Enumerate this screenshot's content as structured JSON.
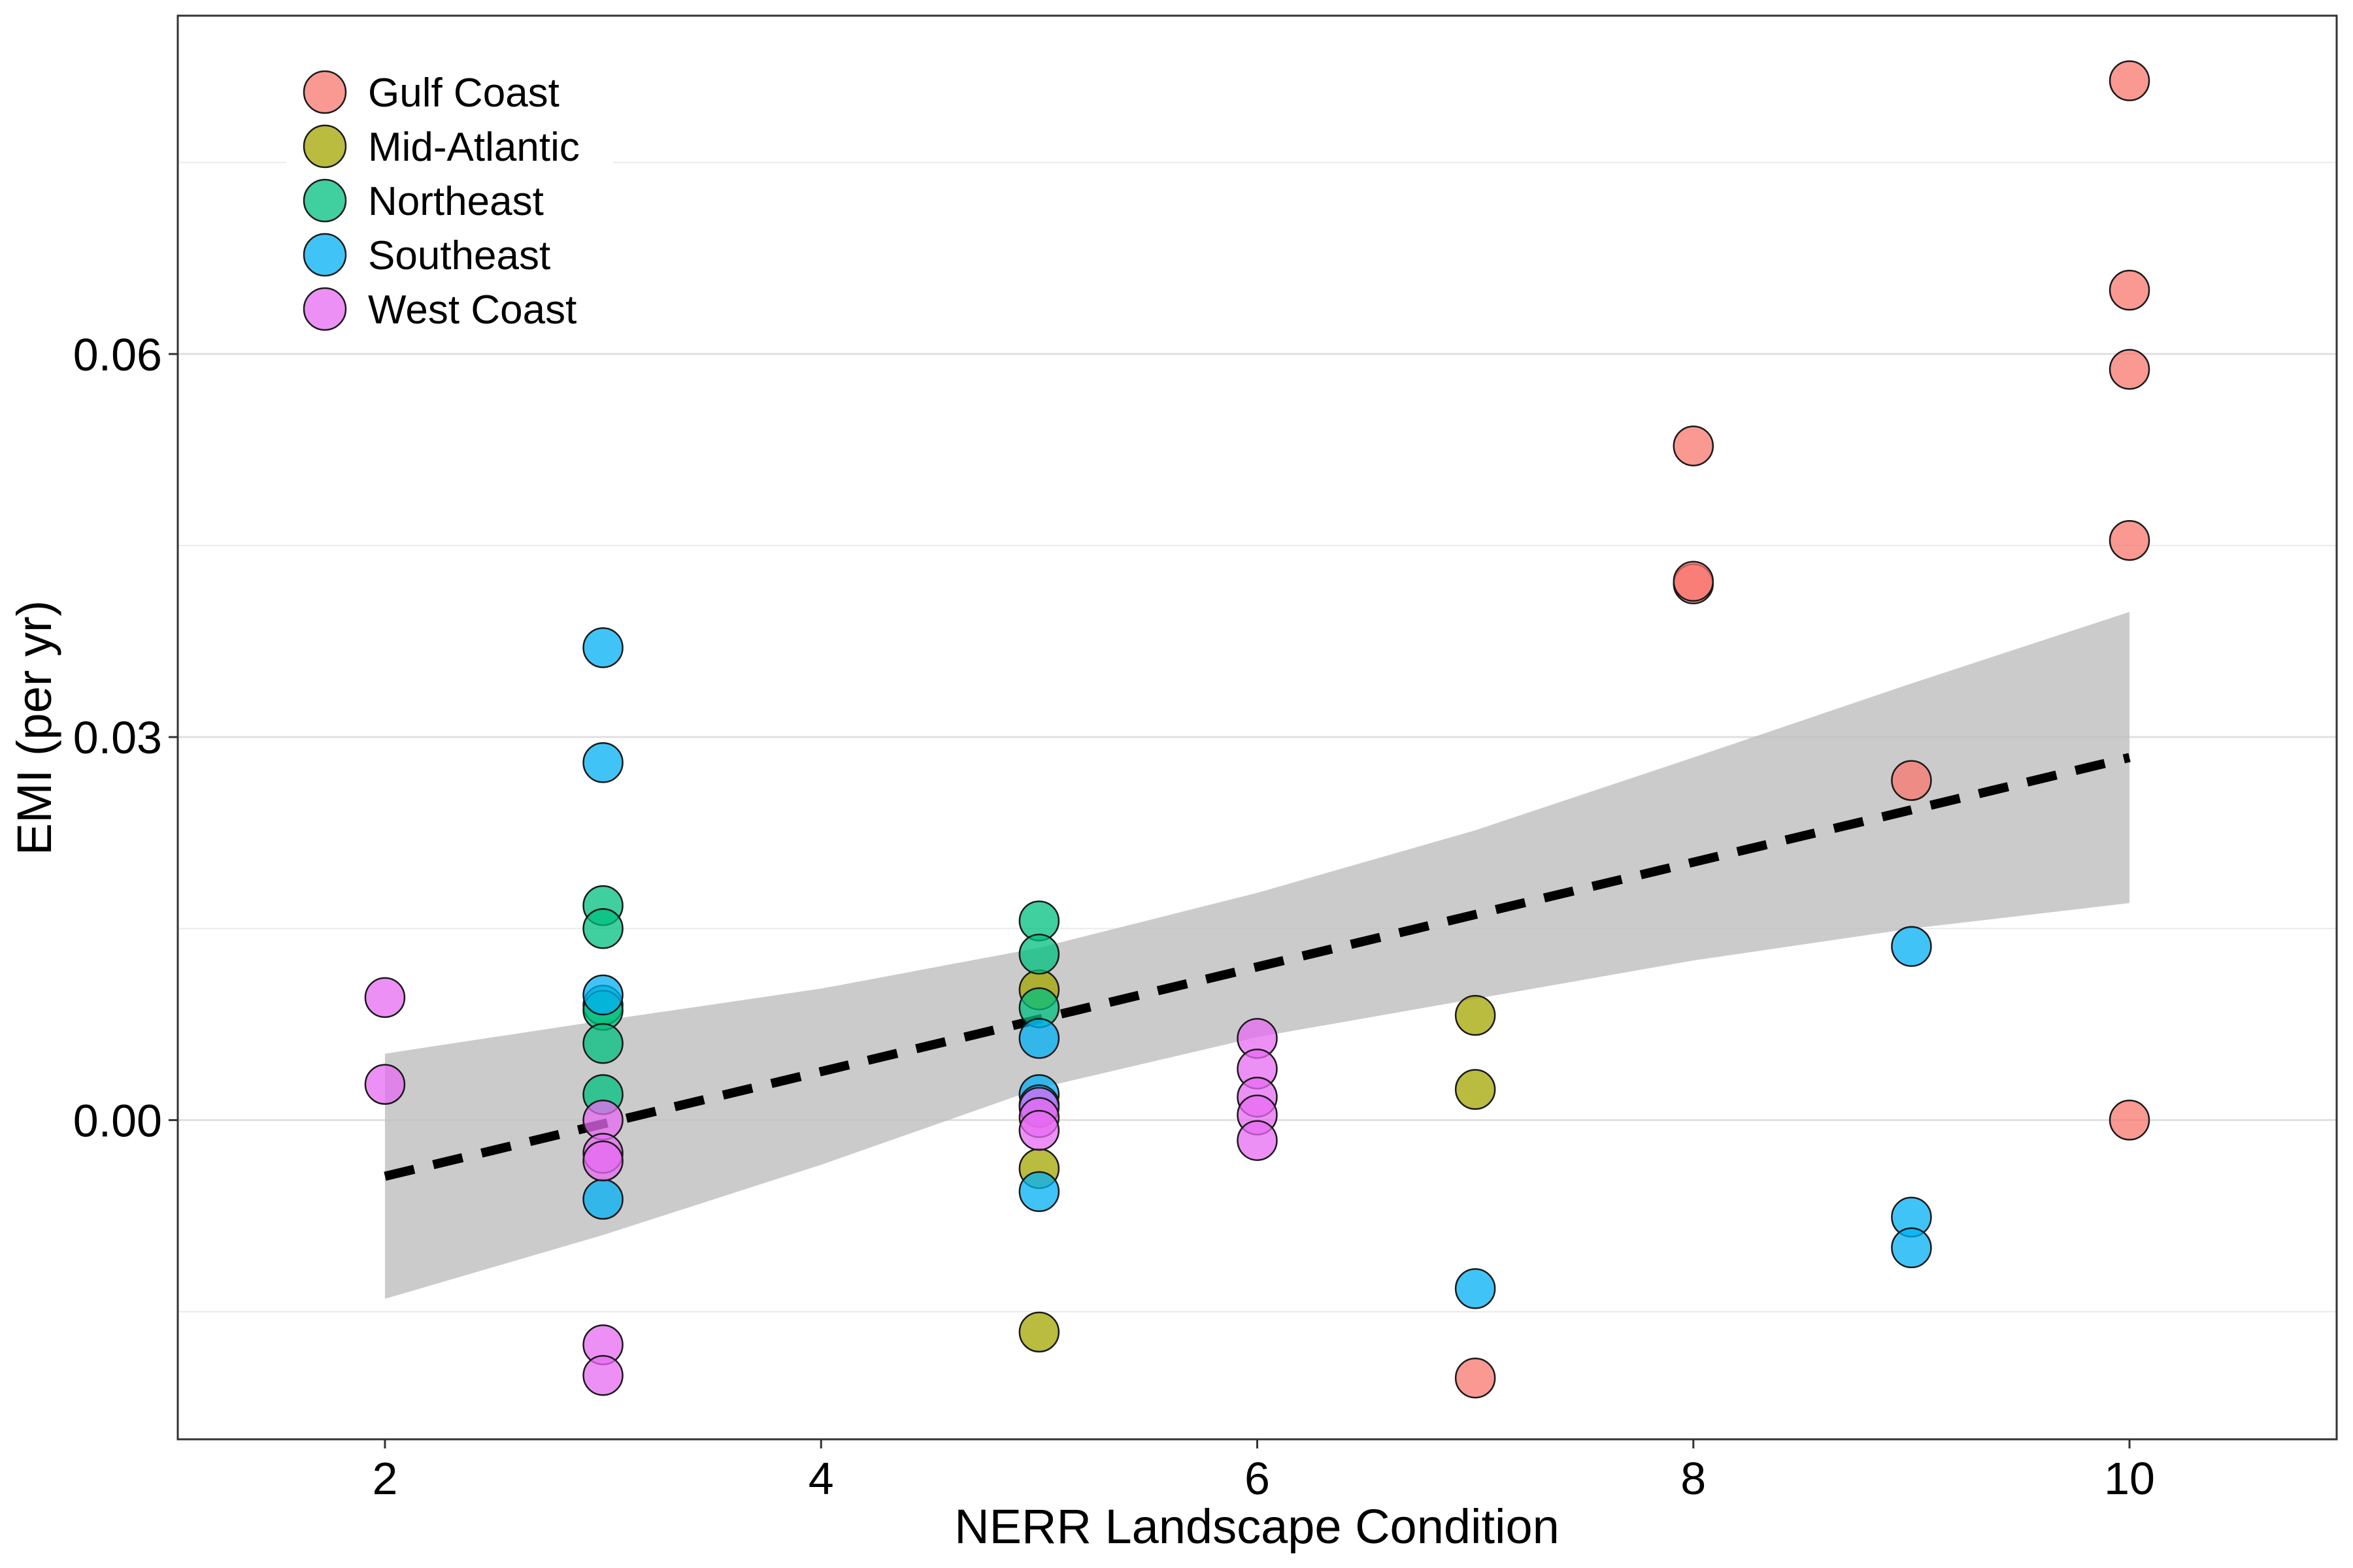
{
  "chart_data": {
    "type": "scatter",
    "xlabel": "NERR Landscape Condition",
    "ylabel": "EMI (per yr)",
    "xlim": [
      1.05,
      10.95
    ],
    "ylim": [
      -0.025,
      0.0865
    ],
    "x_ticks": [
      2,
      4,
      6,
      8,
      10
    ],
    "x_tick_labels": [
      "2",
      "4",
      "6",
      "8",
      "10"
    ],
    "y_ticks": [
      0.0,
      0.03,
      0.06
    ],
    "y_tick_labels": [
      "0.00",
      "0.03",
      "0.06"
    ],
    "y_minor_grid": [
      -0.015,
      0.015,
      0.045,
      0.075
    ],
    "grid": true,
    "legend_position": "top-left",
    "series": [
      {
        "name": "Gulf Coast",
        "color": "#F8766D",
        "points": [
          [
            7,
            -0.0202
          ],
          [
            8,
            0.0528
          ],
          [
            8,
            0.042
          ],
          [
            8,
            0.0422
          ],
          [
            9,
            0.0266
          ],
          [
            10,
            0.0814
          ],
          [
            10,
            0.065
          ],
          [
            10,
            0.0588
          ],
          [
            10,
            0.0454
          ],
          [
            10,
            0.0
          ]
        ]
      },
      {
        "name": "Mid-Atlantic",
        "color": "#A3A500",
        "points": [
          [
            5,
            0.0102
          ],
          [
            5,
            -0.0038
          ],
          [
            5,
            -0.0166
          ],
          [
            7,
            0.0082
          ],
          [
            7,
            0.0024
          ]
        ]
      },
      {
        "name": "Northeast",
        "color": "#00BF7D",
        "points": [
          [
            3,
            0.0168
          ],
          [
            3,
            0.015
          ],
          [
            3,
            0.009
          ],
          [
            3,
            0.0086
          ],
          [
            3,
            0.006
          ],
          [
            3,
            0.002
          ],
          [
            5,
            0.0156
          ],
          [
            5,
            0.013
          ],
          [
            5,
            0.0088
          ]
        ]
      },
      {
        "name": "Southeast",
        "color": "#00B0F6",
        "points": [
          [
            3,
            0.037
          ],
          [
            3,
            0.028
          ],
          [
            3,
            0.0098
          ],
          [
            3,
            -0.0062
          ],
          [
            5,
            0.0064
          ],
          [
            5,
            0.002
          ],
          [
            5,
            0.0012
          ],
          [
            5,
            -0.0056
          ],
          [
            7,
            -0.0132
          ],
          [
            9,
            0.0136
          ],
          [
            9,
            -0.0076
          ],
          [
            9,
            -0.01
          ]
        ]
      },
      {
        "name": "West Coast",
        "color": "#E76BF3",
        "points": [
          [
            2,
            0.0096
          ],
          [
            2,
            0.0028
          ],
          [
            3,
            0.0
          ],
          [
            3,
            -0.0026
          ],
          [
            3,
            -0.0032
          ],
          [
            3,
            -0.0176
          ],
          [
            3,
            -0.02
          ],
          [
            5,
            0.001
          ],
          [
            5,
            0.0002
          ],
          [
            5,
            -0.0008
          ],
          [
            6,
            0.0064
          ],
          [
            6,
            0.004
          ],
          [
            6,
            0.0018
          ],
          [
            6,
            0.0004
          ],
          [
            6,
            -0.0016
          ]
        ]
      }
    ],
    "trend_line": {
      "style": "dashed",
      "color": "#000000",
      "x": [
        2,
        10
      ],
      "y": [
        -0.0044,
        0.0284
      ]
    },
    "confidence_band": {
      "color": "#BEBEBE",
      "x": [
        2,
        3,
        4,
        5,
        6,
        7,
        8,
        9,
        10
      ],
      "lower": [
        -0.014,
        -0.009,
        -0.0035,
        0.0025,
        0.0065,
        0.0095,
        0.0125,
        0.015,
        0.017
      ],
      "upper": [
        0.0052,
        0.0078,
        0.0103,
        0.0135,
        0.0178,
        0.0227,
        0.0284,
        0.0342,
        0.0398
      ]
    }
  }
}
